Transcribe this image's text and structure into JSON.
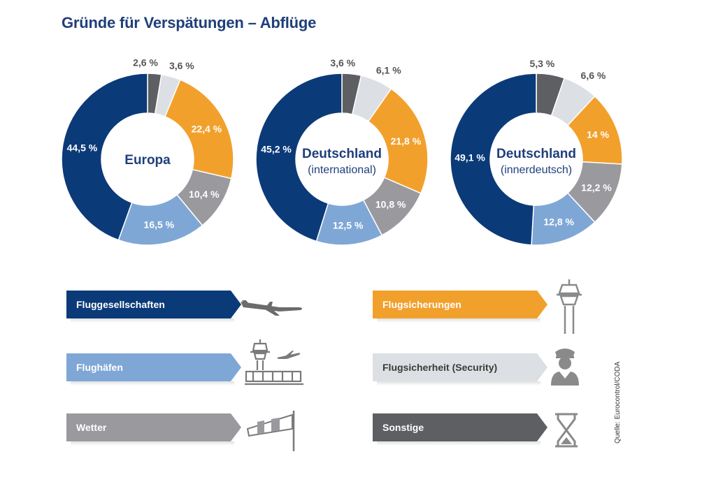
{
  "title": "Gründe für Verspätungen – Abflüge",
  "colors": {
    "Fluggesellschaften": "#0b3a78",
    "Flughäfen": "#7fa7d6",
    "Wetter": "#9a9a9e",
    "Flugsicherungen": "#f2a02c",
    "Flugsicherheit (Security)": "#dcdfe3",
    "Sonstige": "#5d5f62"
  },
  "chart_data": [
    {
      "type": "pie",
      "title": "Europa",
      "subtitle": "",
      "categories": [
        "Sonstige",
        "Flugsicherheit (Security)",
        "Flugsicherungen",
        "Wetter",
        "Flughäfen",
        "Fluggesellschaften"
      ],
      "values": [
        2.6,
        3.6,
        22.4,
        10.4,
        16.5,
        44.5
      ],
      "labels": [
        "2,6 %",
        "3,6 %",
        "22,4 %",
        "10,4 %",
        "16,5 %",
        "44,5 %"
      ]
    },
    {
      "type": "pie",
      "title": "Deutschland",
      "subtitle": "(international)",
      "categories": [
        "Sonstige",
        "Flugsicherheit (Security)",
        "Flugsicherungen",
        "Wetter",
        "Flughäfen",
        "Fluggesellschaften"
      ],
      "values": [
        3.6,
        6.1,
        21.8,
        10.8,
        12.5,
        45.2
      ],
      "labels": [
        "3,6 %",
        "6,1 %",
        "21,8 %",
        "10,8 %",
        "12,5 %",
        "45,2 %"
      ]
    },
    {
      "type": "pie",
      "title": "Deutschland",
      "subtitle": "(innerdeutsch)",
      "categories": [
        "Sonstige",
        "Flugsicherheit (Security)",
        "Flugsicherungen",
        "Wetter",
        "Flughäfen",
        "Fluggesellschaften"
      ],
      "values": [
        5.3,
        6.6,
        14,
        12.2,
        12.8,
        49.1
      ],
      "labels": [
        "5,3 %",
        "6,6 %",
        "14 %",
        "12,2 %",
        "12,8 %",
        "49,1 %"
      ]
    }
  ],
  "legend": [
    {
      "label": "Fluggesellschaften",
      "icon": "airplane-icon"
    },
    {
      "label": "Flugsicherungen",
      "icon": "control-tower-icon"
    },
    {
      "label": "Flughäfen",
      "icon": "airport-terminal-icon"
    },
    {
      "label": "Flugsicherheit (Security)",
      "icon": "security-officer-icon"
    },
    {
      "label": "Wetter",
      "icon": "windsock-icon"
    },
    {
      "label": "Sonstige",
      "icon": "hourglass-icon"
    }
  ],
  "source": "Quelle: Eurocontrol/CODA"
}
